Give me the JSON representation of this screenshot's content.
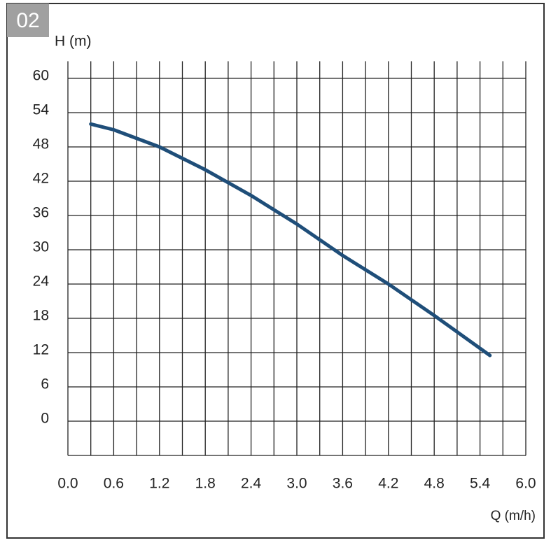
{
  "chart_data": {
    "type": "line",
    "panel_label": "02",
    "y_label": "H (m)",
    "x_label": "Q (m/h)",
    "x": [
      0.3,
      0.6,
      1.2,
      1.8,
      2.4,
      3.0,
      3.6,
      4.2,
      4.8,
      5.53
    ],
    "values": [
      52,
      51,
      48,
      44,
      39.5,
      34.5,
      29,
      24,
      18.5,
      11.5
    ],
    "color": "#1f4e79",
    "xlim": [
      0,
      6
    ],
    "xticks": [
      {
        "value": 0,
        "label": "0.0"
      },
      0.6,
      1.2,
      1.8,
      2.4,
      {
        "value": 3,
        "label": "3.0"
      },
      3.6,
      4.2,
      4.8,
      5.4,
      {
        "value": 6,
        "label": "6.0"
      }
    ],
    "ylim": [
      -6,
      63
    ],
    "yticks": [
      0,
      6,
      12,
      18,
      24,
      30,
      36,
      42,
      48,
      54,
      60
    ],
    "grid": true,
    "x_minor_grid": true
  }
}
